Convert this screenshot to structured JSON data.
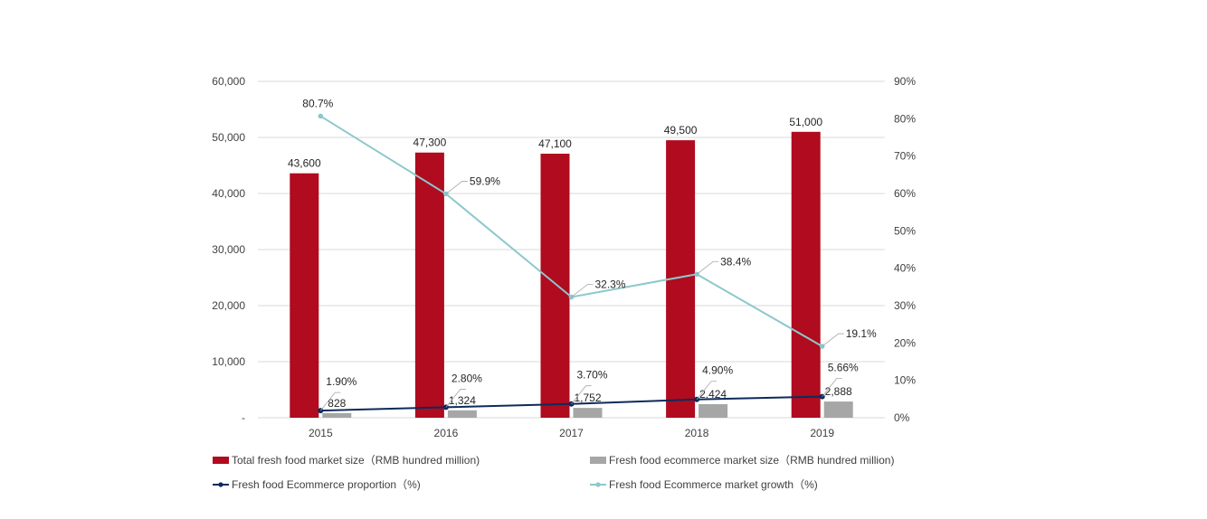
{
  "chart_data": {
    "type": "bar",
    "categories": [
      "2015",
      "2016",
      "2017",
      "2018",
      "2019"
    ],
    "y_left": {
      "ylim": [
        0,
        60000
      ],
      "ticks": [
        0,
        10000,
        20000,
        30000,
        40000,
        50000,
        60000
      ],
      "tick_labels": [
        "-",
        "10,000",
        "20,000",
        "30,000",
        "40,000",
        "50,000",
        "60,000"
      ]
    },
    "y_right": {
      "ylim": [
        0,
        90
      ],
      "ticks": [
        0,
        10,
        20,
        30,
        40,
        50,
        60,
        70,
        80,
        90
      ],
      "tick_labels": [
        "0%",
        "10%",
        "20%",
        "30%",
        "40%",
        "50%",
        "60%",
        "70%",
        "80%",
        "90%"
      ]
    },
    "series": [
      {
        "name": "Total fresh food market size（RMB hundred million)",
        "kind": "bar",
        "axis": "left",
        "color": "#B00B1E",
        "values": [
          43600,
          47300,
          47100,
          49500,
          51000
        ],
        "labels": [
          "43,600",
          "47,300",
          "47,100",
          "49,500",
          "51,000"
        ]
      },
      {
        "name": "Fresh food ecommerce market size（RMB hundred million)",
        "kind": "bar",
        "axis": "left",
        "color": "#A6A6A6",
        "values": [
          828,
          1324,
          1752,
          2424,
          2888
        ],
        "labels": [
          "828",
          "1,324",
          "1,752",
          "2,424",
          "2,888"
        ]
      },
      {
        "name": "Fresh food Ecommerce proportion（%)",
        "kind": "line",
        "axis": "right",
        "color": "#0D2A5C",
        "values": [
          1.9,
          2.8,
          3.7,
          4.9,
          5.66
        ],
        "labels": [
          "1.90%",
          "2.80%",
          "3.70%",
          "4.90%",
          "5.66%"
        ]
      },
      {
        "name": "Fresh food Ecommerce market growth（%)",
        "kind": "line",
        "axis": "right",
        "color": "#8CC8CC",
        "values": [
          80.7,
          59.9,
          32.3,
          38.4,
          19.1
        ],
        "labels": [
          "80.7%",
          "59.9%",
          "32.3%",
          "38.4%",
          "19.1%"
        ]
      }
    ],
    "grid": true,
    "legend_position": "bottom"
  }
}
